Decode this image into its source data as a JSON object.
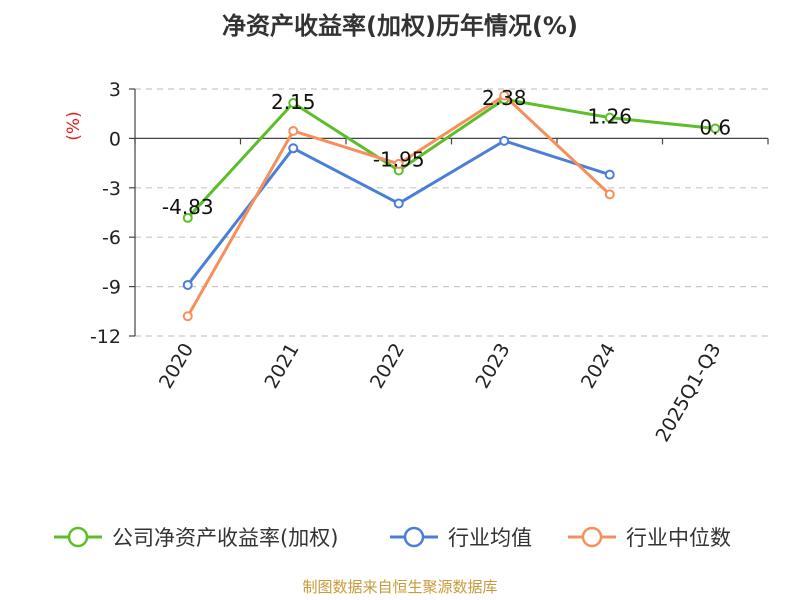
{
  "chart_data": {
    "type": "line",
    "title": "净资产收益率(加权)历年情况(%)",
    "ylabel": "(%)",
    "categories": [
      "2020",
      "2021",
      "2022",
      "2023",
      "2024",
      "2025Q1-Q3"
    ],
    "ylim": [
      -12,
      3
    ],
    "yticks": [
      3,
      0,
      -3,
      -6,
      -9,
      -12
    ],
    "grid": true,
    "legend_position": "bottom",
    "series": [
      {
        "name": "公司净资产收益率(加权)",
        "color": "#5cbf2a",
        "values": [
          -4.83,
          2.15,
          -1.95,
          2.38,
          1.26,
          0.6
        ],
        "labels": [
          "-4.83",
          "2.15",
          "-1.95",
          "2.38",
          "1.26",
          "0.6"
        ]
      },
      {
        "name": "行业均值",
        "color": "#4a7fd8",
        "values": [
          -8.9,
          -0.6,
          -3.95,
          -0.15,
          -2.2,
          null
        ]
      },
      {
        "name": "行业中位数",
        "color": "#f5905a",
        "values": [
          -10.8,
          0.45,
          -1.55,
          2.6,
          -3.4,
          null
        ]
      }
    ]
  },
  "source": "制图数据来自恒生聚源数据库"
}
